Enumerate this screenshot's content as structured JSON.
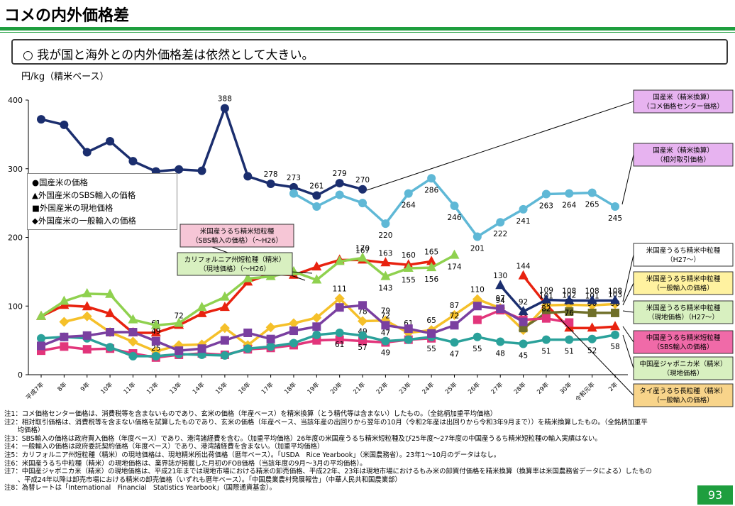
{
  "title": "コメの内外価格差",
  "headline": "○  我が国と海外との内外価格差は依然として大きい。",
  "unit_label": "円/kg（精米ベース）",
  "legend": [
    "●国産米の価格",
    "▲外国産米のSBS輸入の価格",
    "■外国産米の現地価格",
    "◆外国産米の一般輸入の価格"
  ],
  "page_number": "93",
  "notes": [
    "注1：コメ価格センター価格は、消費税等を含まないものであり、玄米の価格（年産ベース）を精米換算（とう精代等は含まない）したもの。（全銘柄加重平均価格）",
    "注2：相対取引価格は、消費税等を含まない価格を試算したものであり、玄米の価格（年産ベース、当該年産の出回りから翌年の10月（令和2年産は出回りから令和3年9月まで））を精米換算したもの。（全銘柄加重平",
    "　　均価格）",
    "注3：SBS輸入の価格は政府買入価格（年度ベース）であり、港湾諸経費を含む。（加重平均価格）26年度の米国産うるち精米短粒種及び25年度～27年度の中国産うるち精米短粒種の輸入実績はない。",
    "注4：一般輸入の価格は政府委託契約価格（年度ベース）であり、港湾諸経費を含まない。（加重平均価格）",
    "注5：カリフォルニア州短粒種（精米）の現地価格は、現地精米所出荷価格（暦年ベース）。「USDA　Rice Yearbook」（米国農務省）。23年1～10月のデータはなし。",
    "注6：米国産うるち中粒種（精米）の現地価格は、業界誌が掲載した月初のFOB価格（当該年度の9月～3月の平均価格）。",
    "注7：中国産ジャポニカ米（精米）の現地価格は、平成21年までは現地市場における精米の卸売価格、平成22年、23年は現地市場におけるもみ米の卸買付価格を精米換算（換算率は米国農務省データによる）したもの",
    "　　、平成24年以降は卸売市場における精米の卸売価格（いずれも暦年ベース）。「中国農業農村発展報告」（中華人民共和国農業部）",
    "注8：為替レートは「International　Financial　Statistics Yearbook」（国際通貨基金）。"
  ],
  "chart_data": {
    "type": "line",
    "xlabel": "",
    "ylabel": "円/kg（精米ベース）",
    "ylim": [
      0,
      400
    ],
    "yticks": [
      0,
      100,
      200,
      300,
      400
    ],
    "categories": [
      "平成7年",
      "8年",
      "9年",
      "10年",
      "11年",
      "12年",
      "13年",
      "14年",
      "15年",
      "16年",
      "17年",
      "18年",
      "19年",
      "20年",
      "21年",
      "22年",
      "23年",
      "24年",
      "25年",
      "26年",
      "27年",
      "28年",
      "29年",
      "30年",
      "令和元年",
      "2年"
    ],
    "series": [
      {
        "name": "国産米（精米換算）（コメ価格センター価格）",
        "color": "#1b2e6e",
        "marker": "circle",
        "values": [
          372,
          364,
          324,
          340,
          311,
          296,
          299,
          297,
          388,
          289,
          278,
          273,
          261,
          279,
          270,
          null,
          null,
          null,
          null,
          null,
          null,
          null,
          null,
          null,
          null,
          null
        ],
        "labels": [
          null,
          null,
          null,
          null,
          null,
          null,
          null,
          null,
          "388",
          null,
          "278",
          "273",
          "261",
          "279",
          "270",
          null,
          null,
          null,
          null,
          null,
          null,
          null,
          null,
          null,
          null,
          null
        ]
      },
      {
        "name": "国産米（精米換算）（相対取引価格）",
        "color": "#5fb8d6",
        "marker": "circle",
        "values": [
          null,
          null,
          null,
          null,
          null,
          null,
          null,
          null,
          null,
          null,
          null,
          264,
          245,
          262,
          250,
          220,
          264,
          286,
          246,
          201,
          222,
          241,
          263,
          264,
          265,
          245
        ],
        "labels": [
          null,
          null,
          null,
          null,
          null,
          null,
          null,
          null,
          null,
          null,
          null,
          null,
          null,
          null,
          null,
          "220",
          "264",
          "286",
          "246",
          "201",
          "222",
          "241",
          "263",
          "264",
          "265",
          "245"
        ]
      },
      {
        "name": "米国産うるち精米短粒種（SBS輸入の価格）（～H26）",
        "color": "#e8220f",
        "marker": "triangle",
        "values": [
          85,
          101,
          99,
          89,
          61,
          61,
          72,
          89,
          98,
          135,
          147,
          145,
          157,
          167,
          167,
          163,
          160,
          165,
          null,
          null,
          null,
          144,
          102,
          68,
          68,
          70
        ],
        "labels": [
          null,
          null,
          null,
          null,
          null,
          "61",
          "72",
          null,
          null,
          null,
          null,
          null,
          null,
          null,
          "167",
          "163",
          "160",
          "165",
          null,
          null,
          null,
          "144",
          null,
          null,
          null,
          null
        ]
      },
      {
        "name": "カリフォルニア州短粒種（精米）（現地価格）（～H26）",
        "color": "#8fd14f",
        "marker": "triangle",
        "values": [
          85,
          107,
          118,
          117,
          80,
          72,
          75,
          98,
          113,
          140,
          143,
          150,
          138,
          165,
          170,
          143,
          155,
          156,
          174,
          null,
          null,
          null,
          null,
          null,
          null,
          null
        ],
        "labels": [
          null,
          null,
          null,
          null,
          null,
          null,
          null,
          null,
          null,
          null,
          null,
          null,
          null,
          null,
          "170",
          "143",
          "155",
          "156",
          "174",
          null,
          null,
          null,
          null,
          null,
          null,
          null
        ]
      },
      {
        "name": "米国産うるち精米中粒種（一般輸入の価格）",
        "color": "#f5c02a",
        "marker": "diamond",
        "values": [
          null,
          77,
          85,
          62,
          48,
          34,
          43,
          44,
          68,
          43,
          69,
          75,
          83,
          111,
          78,
          79,
          61,
          65,
          87,
          110,
          97,
          65,
          101,
          102,
          101,
          103
        ],
        "labels": [
          null,
          null,
          null,
          null,
          "48",
          null,
          null,
          null,
          null,
          null,
          null,
          null,
          null,
          "111",
          "78",
          "79",
          "61",
          "65",
          "87",
          "110",
          "97",
          "65",
          "101",
          "102",
          "101",
          "103"
        ]
      },
      {
        "name": "米国産うるち精米中粒種（現地価格）（H27～）",
        "color": "#6f6f29",
        "marker": "square",
        "values": [
          null,
          null,
          null,
          null,
          null,
          null,
          null,
          null,
          null,
          null,
          null,
          null,
          null,
          null,
          null,
          null,
          null,
          null,
          null,
          null,
          null,
          68,
          90,
          92,
          90,
          90
        ],
        "labels": [
          null,
          null,
          null,
          null,
          null,
          null,
          null,
          null,
          null,
          null,
          null,
          null,
          null,
          null,
          null,
          null,
          null,
          null,
          null,
          null,
          null,
          "68",
          "90",
          "92",
          "90",
          "90"
        ]
      },
      {
        "name": "米国産うるち精米中粒種（H27～）",
        "color": "#1b2e6e",
        "marker": "triangle",
        "values": [
          null,
          null,
          null,
          null,
          null,
          null,
          null,
          null,
          null,
          null,
          null,
          null,
          null,
          null,
          null,
          null,
          null,
          null,
          null,
          null,
          130,
          92,
          109,
          108,
          108,
          108
        ],
        "labels": [
          null,
          null,
          null,
          null,
          null,
          null,
          null,
          null,
          null,
          null,
          null,
          null,
          null,
          null,
          null,
          null,
          null,
          null,
          null,
          null,
          "130",
          "92",
          "109",
          "108",
          "108",
          "108"
        ]
      },
      {
        "name": "中国産うるち精米短粒種（SBS輸入の価格）",
        "color": "#e2357b",
        "marker": "square",
        "values": [
          35,
          41,
          37,
          38,
          31,
          25,
          29,
          31,
          29,
          37,
          39,
          43,
          50,
          51,
          49,
          47,
          51,
          53,
          null,
          80,
          94,
          80,
          82,
          76,
          null,
          null
        ],
        "labels": [
          null,
          null,
          null,
          null,
          null,
          "25",
          null,
          null,
          null,
          null,
          null,
          null,
          null,
          null,
          "49",
          "47",
          "51",
          null,
          null,
          null,
          "94",
          null,
          "82",
          "76",
          null,
          null
        ]
      },
      {
        "name": "中国産ジャポニカ米（精米）（現地価格）",
        "color": "#2aa19a",
        "marker": "circle",
        "values": [
          53,
          55,
          53,
          40,
          27,
          27,
          30,
          29,
          28,
          38,
          41,
          46,
          58,
          61,
          57,
          49,
          51,
          55,
          47,
          55,
          48,
          45,
          51,
          51,
          52,
          58
        ],
        "labels": [
          null,
          null,
          null,
          null,
          null,
          null,
          null,
          null,
          null,
          null,
          null,
          null,
          null,
          "61",
          "57",
          "49",
          null,
          "55",
          "47",
          "55",
          "48",
          "45",
          "51",
          "51",
          "52",
          "58"
        ]
      },
      {
        "name": "タイ産うるち長粒種（精米）（一般輸入の価格）",
        "color": "#7a3fa0",
        "marker": "square",
        "values": [
          42,
          55,
          57,
          62,
          62,
          49,
          35,
          38,
          50,
          61,
          52,
          64,
          70,
          98,
          101,
          72,
          67,
          60,
          72,
          100,
          96,
          77,
          null,
          null,
          null,
          null
        ],
        "labels": [
          null,
          null,
          null,
          null,
          null,
          "49",
          null,
          null,
          null,
          null,
          null,
          null,
          null,
          null,
          null,
          "72",
          null,
          null,
          "72",
          null,
          null,
          null,
          null,
          null,
          null,
          null
        ]
      }
    ],
    "callouts": [
      {
        "text": [
          "国産米（精米換算）",
          "（コメ価格センター価格）"
        ],
        "bg": "#e7b3f0"
      },
      {
        "text": [
          "国産米（精米換算）",
          "（相対取引価格）"
        ],
        "bg": "#e7b3f0"
      },
      {
        "text": [
          "米国産うるち精米短粒種",
          "（SBS輸入の価格）（～H26）"
        ],
        "bg": "#f6c6d6"
      },
      {
        "text": [
          "カリフォルニア州短粒種（精米）",
          "（現地価格）（～H26）"
        ],
        "bg": "#d8f0c0"
      },
      {
        "text": [
          "米国産うるち精米中粒種",
          "（H27～）"
        ],
        "bg": "#ffffff"
      },
      {
        "text": [
          "米国産うるち精米中粒種",
          "（一般輸入の価格）"
        ],
        "bg": "#fff2a0"
      },
      {
        "text": [
          "米国産うるち精米中粒種",
          "（現地価格）（H27～）"
        ],
        "bg": "#d8f0c0"
      },
      {
        "text": [
          "中国産うるち精米短粒種",
          "（SBS輸入の価格）"
        ],
        "bg": "#f06aa8"
      },
      {
        "text": [
          "中国産ジャポニカ米（精米）",
          "（現地価格）"
        ],
        "bg": "#d8f0c0"
      },
      {
        "text": [
          "タイ産うるち長粒種（精米）",
          "（一般輸入の価格）"
        ],
        "bg": "#f8d48a"
      }
    ]
  }
}
